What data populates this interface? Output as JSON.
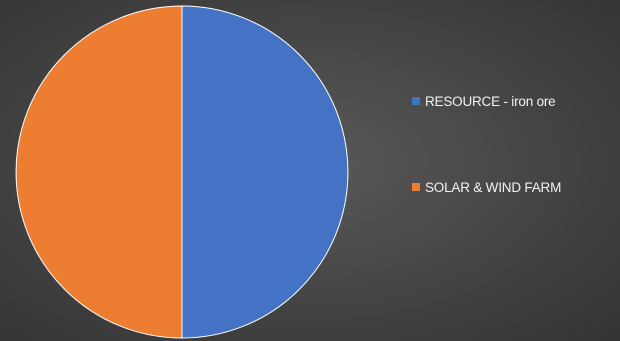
{
  "chart_data": {
    "type": "pie",
    "categories": [
      "RESOURCE - iron ore",
      "SOLAR & WIND FARM"
    ],
    "values": [
      50,
      50
    ],
    "colors": [
      "#4472C4",
      "#ED7D31"
    ],
    "title": "",
    "legend_position": "right",
    "start_angle": "top",
    "direction": "clockwise"
  },
  "background_color": "#454545"
}
